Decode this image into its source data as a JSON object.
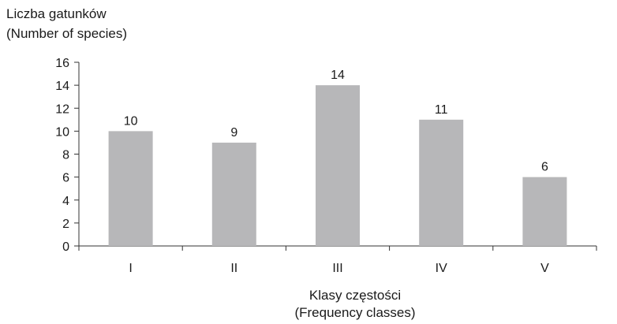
{
  "chart_data": {
    "type": "bar",
    "ylabel_lines": [
      "Liczba gatunków",
      "(Number of species)"
    ],
    "xlabel_lines": [
      "Klasy częstości",
      "(Frequency classes)"
    ],
    "categories": [
      "I",
      "II",
      "III",
      "IV",
      "V"
    ],
    "values": [
      10,
      9,
      14,
      11,
      6
    ],
    "data_labels": [
      "10",
      "9",
      "14",
      "11",
      "6"
    ],
    "ylim": [
      0,
      16
    ],
    "yticks": [
      "0",
      "2",
      "4",
      "6",
      "8",
      "10",
      "12",
      "14",
      "16"
    ],
    "grid": false,
    "bar_color": "#b7b7b9",
    "axis_color": "#333333"
  }
}
